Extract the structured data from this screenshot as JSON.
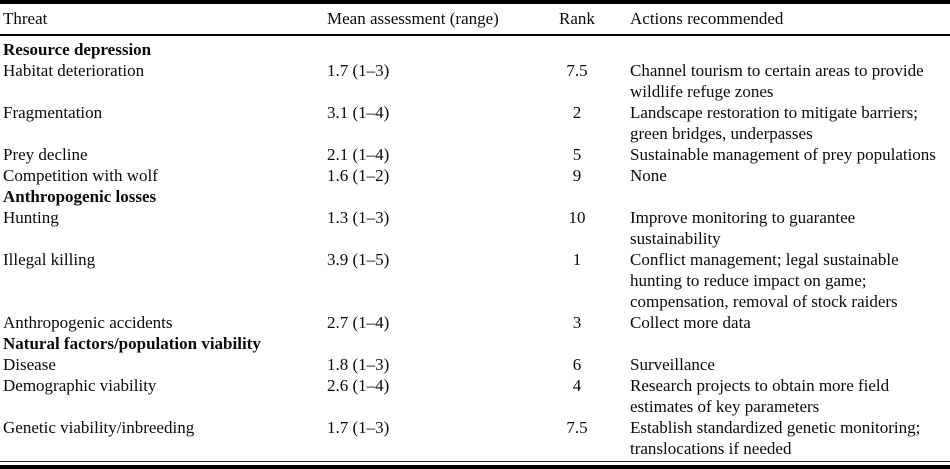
{
  "table": {
    "columns": [
      "Threat",
      "Mean assessment (range)",
      "Rank",
      "Actions recommended"
    ],
    "sections": [
      {
        "header": "Resource depression",
        "rows": [
          {
            "threat": "Habitat deterioration",
            "mean": "1.7 (1–3)",
            "rank": "7.5",
            "actions": "Channel tourism to certain areas to provide wildlife refuge zones"
          },
          {
            "threat": "Fragmentation",
            "mean": "3.1 (1–4)",
            "rank": "2",
            "actions": "Landscape restoration to mitigate barriers; green bridges, underpasses"
          },
          {
            "threat": "Prey decline",
            "mean": "2.1 (1–4)",
            "rank": "5",
            "actions": "Sustainable management of prey populations"
          },
          {
            "threat": "Competition with wolf",
            "mean": "1.6 (1–2)",
            "rank": "9",
            "actions": "None"
          }
        ]
      },
      {
        "header": "Anthropogenic losses",
        "rows": [
          {
            "threat": "Hunting",
            "mean": "1.3 (1–3)",
            "rank": "10",
            "actions": "Improve monitoring to guarantee sustainability"
          },
          {
            "threat": "Illegal killing",
            "mean": "3.9 (1–5)",
            "rank": "1",
            "actions": "Conflict management; legal sustainable hunting to reduce impact on game; compensation, removal of stock raiders"
          },
          {
            "threat": "Anthropogenic accidents",
            "mean": "2.7 (1–4)",
            "rank": "3",
            "actions": "Collect more data"
          }
        ]
      },
      {
        "header": "Natural factors/population viability",
        "rows": [
          {
            "threat": "Disease",
            "mean": "1.8 (1–3)",
            "rank": "6",
            "actions": "Surveillance"
          },
          {
            "threat": "Demographic viability",
            "mean": "2.6 (1–4)",
            "rank": "4",
            "actions": "Research projects to obtain more field estimates of key parameters"
          },
          {
            "threat": "Genetic viability/inbreeding",
            "mean": "1.7 (1–3)",
            "rank": "7.5",
            "actions": "Establish standardized genetic monitoring; translocations if needed"
          }
        ]
      }
    ]
  },
  "colors": {
    "text": "#0a0a0a",
    "rule": "#000000",
    "background": "#ffffff"
  }
}
